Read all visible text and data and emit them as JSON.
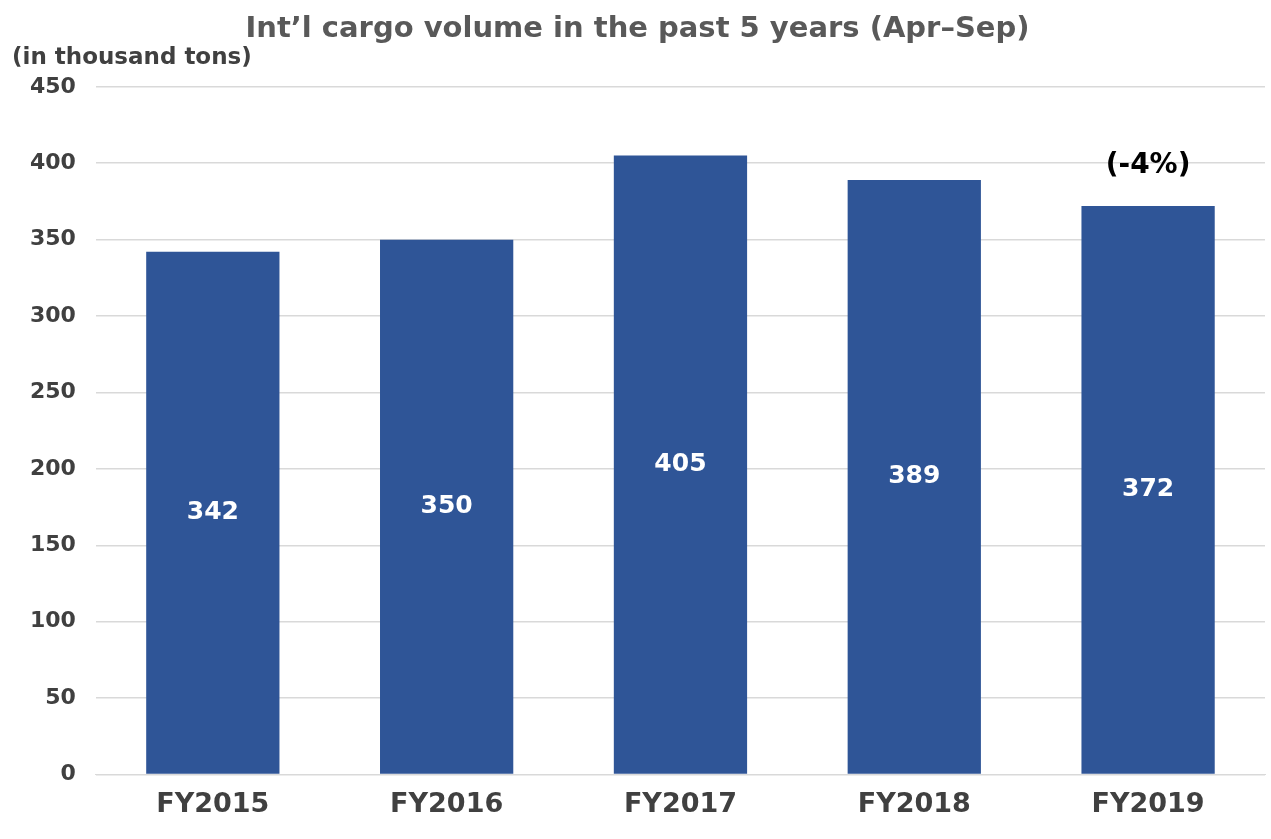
{
  "chart_data": {
    "type": "bar",
    "title": "Int’l cargo volume in the past 5 years (Apr–Sep)",
    "ylabel": "(in thousand tons)",
    "categories": [
      "FY2015",
      "FY2016",
      "FY2017",
      "FY2018",
      "FY2019"
    ],
    "values": [
      342,
      350,
      405,
      389,
      372
    ],
    "color": "#2f5597",
    "ylim": [
      0,
      450
    ],
    "yticks": [
      0,
      50,
      100,
      150,
      200,
      250,
      300,
      350,
      400,
      450
    ],
    "grid": "y",
    "data_labels": true,
    "legend": false,
    "annotations": [
      "(-4%)"
    ]
  }
}
